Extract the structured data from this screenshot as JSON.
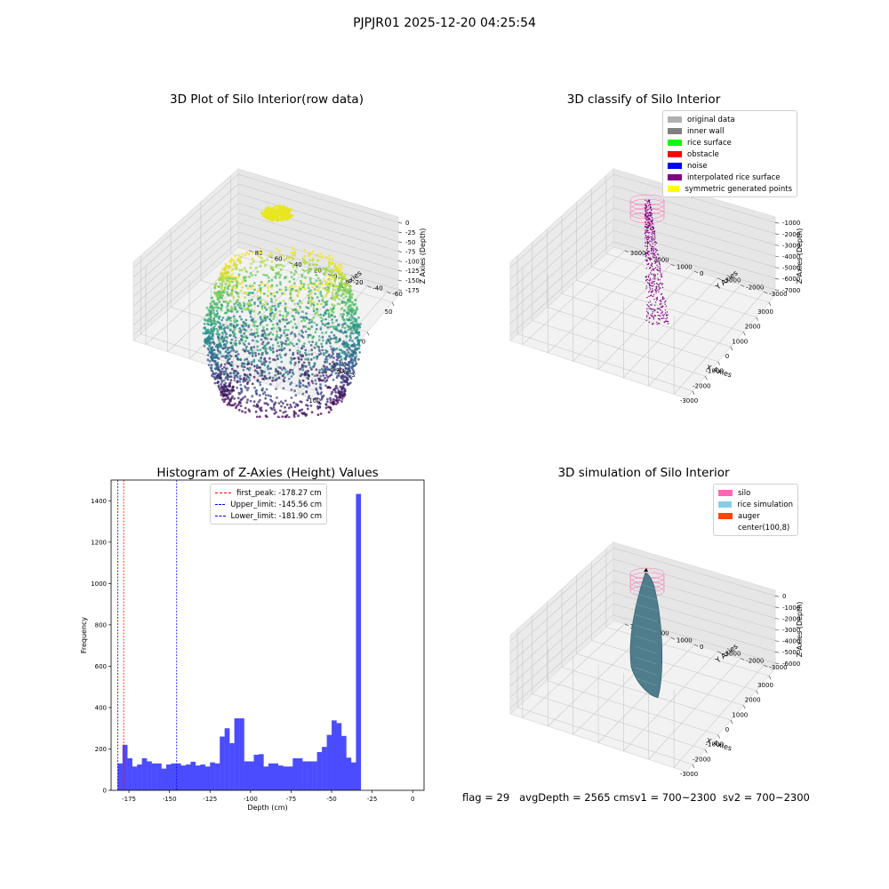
{
  "figure": {
    "suptitle": "PJPJR01 2025-12-20 04:25:54",
    "footer": "flag = 29   avgDepth = 2565 cmsv1 = 700~2300  sv2 = 700~2300"
  },
  "colors": {
    "original": "#b0b0b0",
    "inner_wall": "#808080",
    "rice_surface": "#00ff00",
    "obstacle": "#ff0000",
    "noise": "#0000ff",
    "interpolated": "#800080",
    "symmetric": "#ffff00",
    "silo": "#ff69b4",
    "rice_sim": "#87ceeb",
    "auger": "#ff4500",
    "hist_bar": "#4c4cff",
    "first_peak_line": "#ff0000",
    "limit_line": "#0000ff"
  },
  "chart_data": [
    {
      "id": "raw",
      "type": "scatter3d",
      "title": "3D Plot of Silo Interior(row data)",
      "xlabel": "X Axies",
      "ylabel": "Y Axies",
      "zlabel": "Z Axies (Depth)",
      "xticks": [
        "-100",
        "-50",
        "0",
        "50"
      ],
      "yticks": [
        "-60",
        "-40",
        "-20",
        "0",
        "20",
        "40",
        "60",
        "80"
      ],
      "zticks": [
        "0",
        "-25",
        "-50",
        "-75",
        "-100",
        "-125",
        "-150",
        "-175"
      ],
      "xlim": [
        -140,
        80
      ],
      "ylim": [
        -65,
        95
      ],
      "zlim": [
        -185,
        5
      ]
    },
    {
      "id": "classify",
      "type": "scatter3d",
      "title": "3D classify of Silo Interior",
      "xlabel": "X Axies",
      "ylabel": "Y Axies",
      "zlabel": "Z Axies (Depth)",
      "xticks": [
        "-3000",
        "-2000",
        "-1000",
        "0",
        "1000",
        "2000",
        "3000"
      ],
      "yticks": [
        "-3000",
        "-2000",
        "-1000",
        "0",
        "1000",
        "2000",
        "3000"
      ],
      "zticks": [
        "-1000",
        "-2000",
        "-3000",
        "-4000",
        "-5000",
        "-6000",
        "-7000"
      ],
      "xlim": [
        -3500,
        3500
      ],
      "ylim": [
        -3500,
        3500
      ],
      "zlim": [
        -7500,
        -500
      ],
      "legend": [
        "original data",
        "inner wall",
        "rice surface",
        "obstacle",
        "noise",
        "interpolated rice surface",
        "symmetric generated points"
      ],
      "legend_colors": [
        "original",
        "inner_wall",
        "rice_surface",
        "obstacle",
        "noise",
        "interpolated",
        "symmetric"
      ],
      "legend_loc": "upper right"
    },
    {
      "id": "hist",
      "type": "bar",
      "title": "Histogram of Z-Axies (Height) Values",
      "xlabel": "Depth (cm)",
      "ylabel": "Frequency",
      "xlim": [
        -186,
        7
      ],
      "ylim": [
        0,
        1500
      ],
      "xticks": [
        -175,
        -150,
        -125,
        -100,
        -75,
        -50,
        -25,
        0
      ],
      "yticks": [
        0,
        200,
        400,
        600,
        800,
        1000,
        1200,
        1400
      ],
      "bin_start": -182.0,
      "bin_width": 3.0,
      "values": [
        130,
        220,
        155,
        115,
        125,
        155,
        140,
        130,
        130,
        105,
        125,
        130,
        130,
        120,
        125,
        138,
        120,
        125,
        115,
        135,
        130,
        260,
        300,
        228,
        348,
        348,
        140,
        140,
        172,
        175,
        115,
        130,
        130,
        120,
        115,
        115,
        155,
        155,
        140,
        140,
        140,
        185,
        210,
        268,
        338,
        325,
        263,
        158,
        135,
        1433
      ],
      "vlines": [
        {
          "x": -178.27,
          "label": "first_peak: -178.27 cm",
          "color": "first_peak_line"
        },
        {
          "x": -145.56,
          "label": "Upper_limit: -145.56 cm",
          "color": "limit_line"
        },
        {
          "x": -181.9,
          "label": "Lower_limit: -181.90 cm",
          "color": "limit_line"
        }
      ],
      "legend_loc": "upper center"
    },
    {
      "id": "sim",
      "type": "surface3d",
      "title": "3D simulation of Silo Interior",
      "xlabel": "X Axies",
      "ylabel": "Y Axies",
      "zlabel": "Z Axies (Depth)",
      "xticks": [
        "-3000",
        "-2000",
        "-1000",
        "0",
        "1000",
        "2000",
        "3000"
      ],
      "yticks": [
        "-3000",
        "-2000",
        "-1000",
        "0",
        "1000",
        "2000",
        "3000"
      ],
      "zticks": [
        "0",
        "-1000",
        "-2000",
        "-3000",
        "-4000",
        "-5000",
        "-6000"
      ],
      "xlim": [
        -3500,
        3500
      ],
      "ylim": [
        -3500,
        3500
      ],
      "zlim": [
        -6800,
        300
      ],
      "legend": [
        "silo",
        "rice simulation",
        "auger",
        "center(100,8)"
      ],
      "legend_colors": [
        "silo",
        "rice_sim",
        "auger",
        ""
      ],
      "legend_loc": "upper right"
    }
  ]
}
